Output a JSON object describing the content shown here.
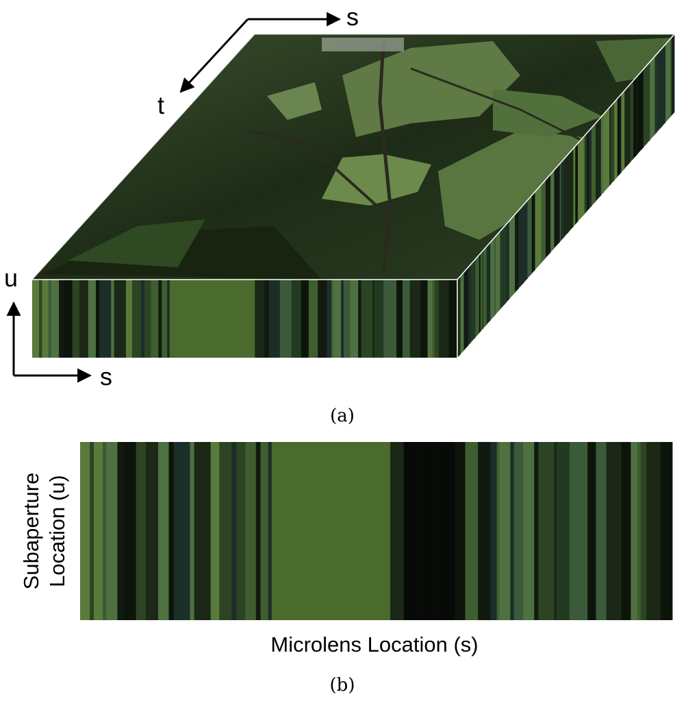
{
  "panel_a": {
    "axis_top_s": "s",
    "axis_top_t": "t",
    "axis_u": "u",
    "axis_s": "s",
    "caption": "(a)"
  },
  "panel_b": {
    "y_label_line1": "Subaperture",
    "y_label_line2": "Location (u)",
    "x_label": "Microlens Location (s)",
    "caption": "(b)"
  }
}
